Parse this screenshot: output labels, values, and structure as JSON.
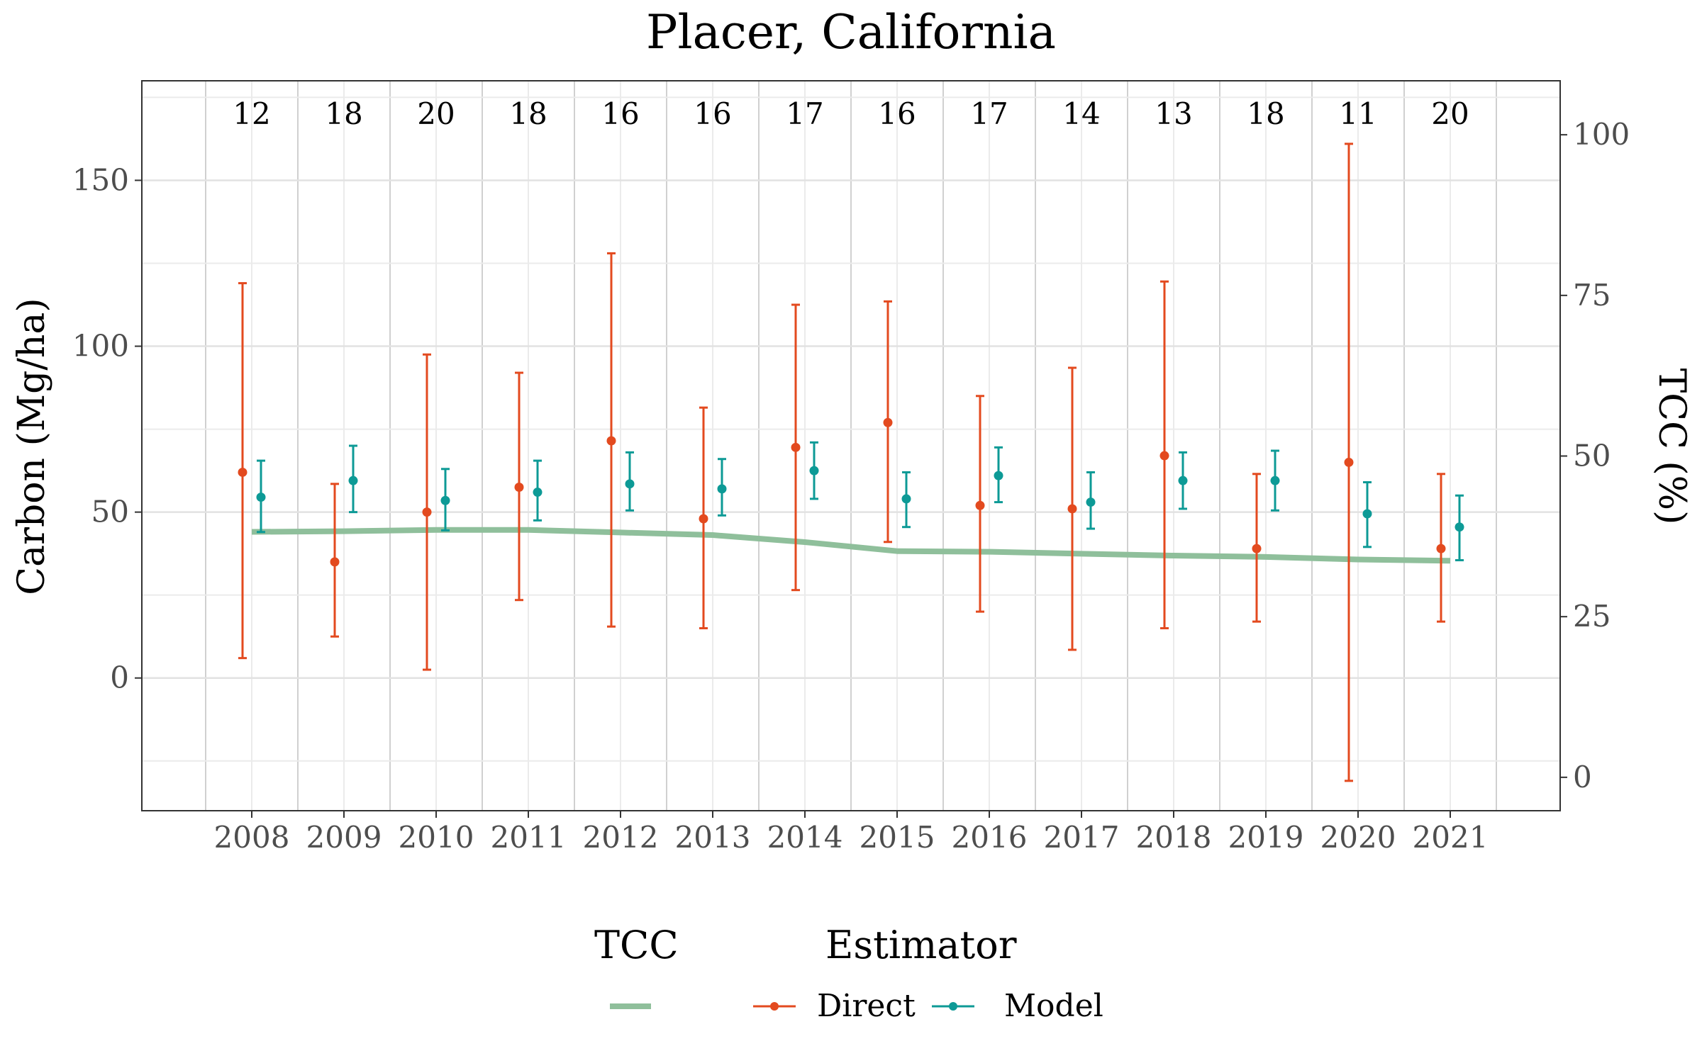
{
  "chart_data": {
    "type": "line",
    "title": "Placer, California",
    "xlabel": "",
    "ylabel": "Carbon (Mg/ha)",
    "y2label": "TCC (%)",
    "ylim": [
      -40,
      180
    ],
    "y2lim": [
      -5.2,
      108.4
    ],
    "yticks": [
      0,
      50,
      100,
      150
    ],
    "y2ticks": [
      0,
      25,
      50,
      75,
      100
    ],
    "grid": true,
    "legend_position": "bottom",
    "categories": [
      "2008",
      "2009",
      "2010",
      "2011",
      "2012",
      "2013",
      "2014",
      "2015",
      "2016",
      "2017",
      "2018",
      "2019",
      "2020",
      "2021"
    ],
    "counts": [
      "12",
      "18",
      "20",
      "18",
      "16",
      "16",
      "17",
      "16",
      "17",
      "14",
      "13",
      "18",
      "11",
      "20"
    ],
    "legend": {
      "tcc_title": "TCC",
      "estimator_title": "Estimator",
      "entries": [
        {
          "name": "Direct",
          "color": "#e34a1f"
        },
        {
          "name": "Model",
          "color": "#0d9a96"
        }
      ],
      "tcc_color": "#8fbf9b"
    },
    "series": [
      {
        "name": "Direct",
        "color": "#e34a1f",
        "values": [
          62,
          35,
          50,
          57.5,
          71.5,
          48,
          69.5,
          77,
          52,
          51,
          67,
          39,
          65,
          39
        ],
        "lower": [
          6,
          12.5,
          2.5,
          23.5,
          15.5,
          15,
          26.5,
          41,
          20,
          8.5,
          15,
          17,
          -31,
          17
        ],
        "upper": [
          119,
          58.5,
          97.5,
          92,
          128,
          81.5,
          112.5,
          113.5,
          85,
          93.5,
          119.5,
          61.5,
          161,
          61.5
        ]
      },
      {
        "name": "Model",
        "color": "#0d9a96",
        "values": [
          54.5,
          59.5,
          53.5,
          56,
          58.5,
          57,
          62.5,
          54,
          61,
          53,
          59.5,
          59.5,
          49.5,
          45.5
        ],
        "lower": [
          44,
          50,
          44.5,
          47.5,
          50.5,
          49,
          54,
          45.5,
          53,
          45,
          51,
          50.5,
          39.5,
          35.5
        ],
        "upper": [
          65.5,
          70,
          63,
          65.5,
          68,
          66,
          71,
          62,
          69.5,
          62,
          68,
          68.5,
          59,
          55
        ]
      },
      {
        "name": "TCC",
        "axis": "right",
        "color": "#8fbf9b",
        "values": [
          38.2,
          38.3,
          38.5,
          38.5,
          38.1,
          37.7,
          36.6,
          35.2,
          35.1,
          34.8,
          34.5,
          34.3,
          33.9,
          33.7
        ]
      }
    ]
  }
}
